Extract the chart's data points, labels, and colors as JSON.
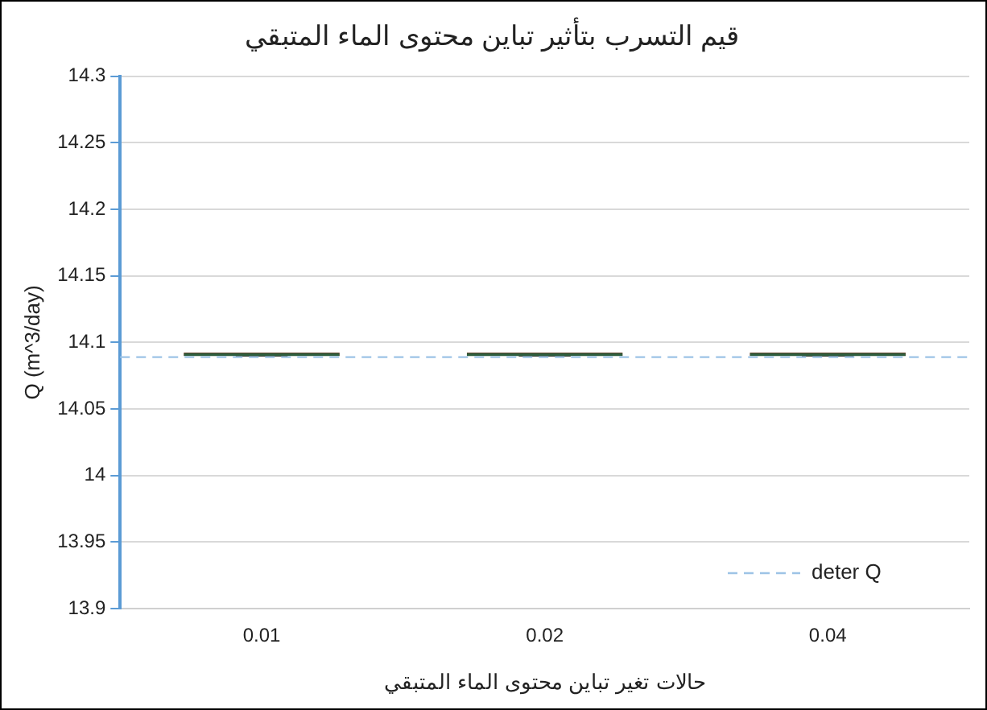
{
  "chart_data": {
    "type": "box",
    "title": "قيم التسرب بتأثير تباين محتوى الماء المتبقي",
    "xlabel": "حالات تغير تباين محتوى الماء المتبقي",
    "ylabel": "Q (m^3/day)",
    "categories": [
      "0.01",
      "0.02",
      "0.04"
    ],
    "boxes": [
      {
        "low": 14.09,
        "q1": 14.09,
        "median": 14.091,
        "q3": 14.091,
        "high": 14.091
      },
      {
        "low": 14.09,
        "q1": 14.09,
        "median": 14.091,
        "q3": 14.091,
        "high": 14.091
      },
      {
        "low": 14.09,
        "q1": 14.09,
        "median": 14.091,
        "q3": 14.091,
        "high": 14.091
      }
    ],
    "color": "#ff0000",
    "ylim": [
      13.9,
      14.3
    ],
    "yticks": [
      13.9,
      13.95,
      14,
      14.05,
      14.1,
      14.15,
      14.2,
      14.25,
      14.3
    ],
    "ref_lines": [
      {
        "axis": "y",
        "value": 14.089,
        "label": "deter Q",
        "color": "#9dc3e6",
        "line_style": "dashed"
      }
    ],
    "grid": "y",
    "legend": "bottom right"
  }
}
